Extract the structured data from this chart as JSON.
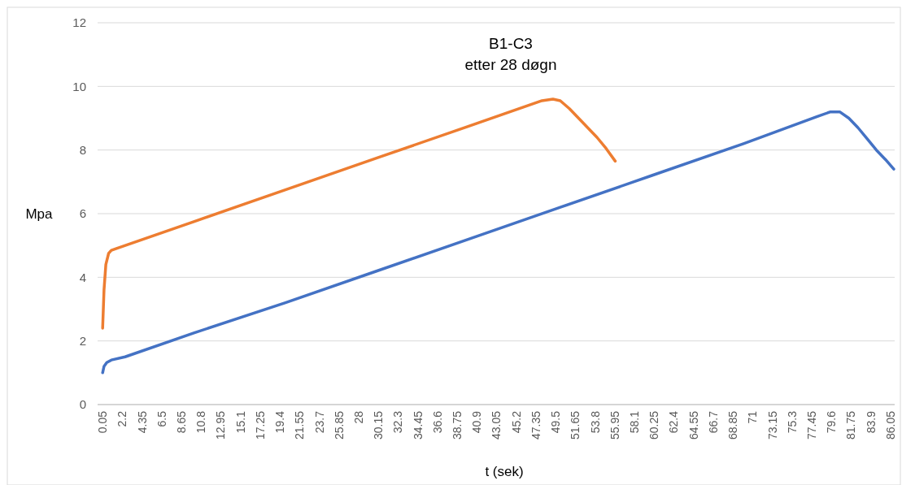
{
  "chart_data": {
    "type": "line",
    "title": "B1-C3\netter 28 døgn",
    "xlabel": "t (sek)",
    "ylabel": "Mpa",
    "xlim": [
      -0.5,
      86.5
    ],
    "ylim": [
      0,
      12
    ],
    "yticks": [
      0,
      2,
      4,
      6,
      8,
      10,
      12
    ],
    "xticks": [
      0.05,
      2.2,
      4.35,
      6.5,
      8.65,
      10.8,
      12.95,
      15.1,
      17.25,
      19.4,
      21.55,
      23.7,
      25.85,
      28,
      30.15,
      32.3,
      34.45,
      36.6,
      38.75,
      40.9,
      43.05,
      45.2,
      47.35,
      49.5,
      51.65,
      53.8,
      55.95,
      58.1,
      60.25,
      62.4,
      64.55,
      66.7,
      68.85,
      71,
      73.15,
      75.3,
      77.45,
      79.6,
      81.75,
      83.9,
      86.05
    ],
    "grid": "y",
    "line_style": "solid",
    "series": [
      {
        "color": "#ed7d31",
        "x": [
          0.05,
          0.2,
          0.4,
          0.7,
          1,
          1.5,
          10,
          20,
          30,
          40,
          48,
          49.2,
          50,
          51,
          52,
          53,
          54,
          55,
          56
        ],
        "values": [
          2.4,
          3.6,
          4.4,
          4.75,
          4.85,
          4.9,
          5.75,
          6.75,
          7.75,
          8.75,
          9.55,
          9.6,
          9.55,
          9.3,
          9.0,
          8.7,
          8.4,
          8.05,
          7.65
        ]
      },
      {
        "color": "#4472c4",
        "x": [
          0.05,
          0.2,
          0.5,
          1,
          2.5,
          10,
          20,
          30,
          40,
          50,
          60,
          70,
          78,
          79.5,
          80.5,
          81.5,
          82.5,
          83.5,
          84.5,
          85.5,
          86.4
        ],
        "values": [
          1.0,
          1.2,
          1.32,
          1.4,
          1.5,
          2.25,
          3.2,
          4.2,
          5.2,
          6.2,
          7.2,
          8.2,
          9.05,
          9.2,
          9.2,
          9.0,
          8.7,
          8.35,
          8.0,
          7.7,
          7.4
        ]
      }
    ]
  }
}
